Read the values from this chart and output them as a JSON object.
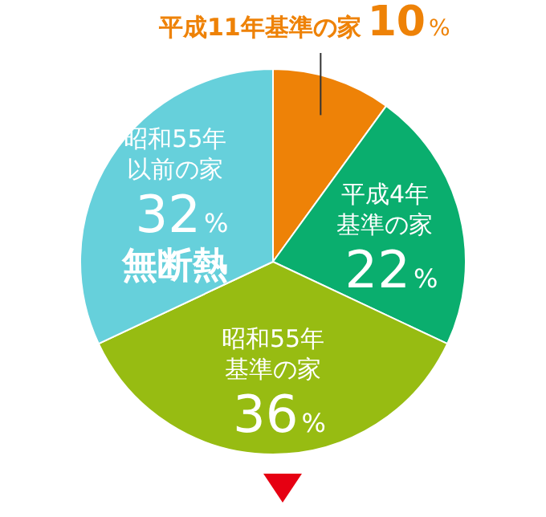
{
  "chart_data": {
    "type": "pie",
    "categories": [
      "平成11年基準の家",
      "平成4年基準の家",
      "昭和55年基準の家",
      "昭和55年以前の家"
    ],
    "values": [
      10,
      22,
      36,
      32
    ],
    "colors": [
      "#ee8207",
      "#0aae6e",
      "#97bc12",
      "#66d0db"
    ],
    "value_labels": [
      "10%",
      "22%",
      "36%",
      "32%"
    ],
    "annotations": [
      {
        "text": "無断熱",
        "x": "昭和55年以前の家"
      }
    ]
  }
}
